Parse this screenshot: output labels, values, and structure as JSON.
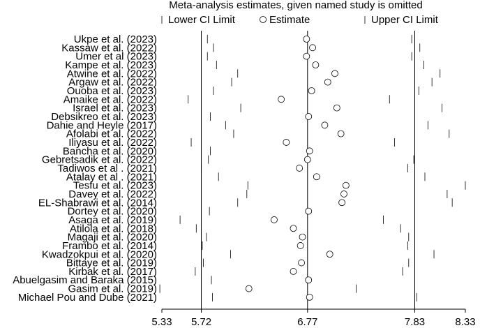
{
  "chart_data": {
    "type": "scatter",
    "title": "Meta-analysis estimates, given named study is omitted",
    "legend": {
      "position": "top",
      "entries": [
        {
          "marker": "tick",
          "label": "Lower CI Limit"
        },
        {
          "marker": "circle",
          "label": "Estimate"
        },
        {
          "marker": "tick",
          "label": "Upper CI Limit"
        }
      ]
    },
    "xlim": [
      5.33,
      8.33
    ],
    "x_ticks": [
      5.33,
      5.72,
      6.77,
      7.83,
      8.33
    ],
    "x_tick_labels": [
      "5.33",
      "5.72",
      "6.77",
      "7.83",
      "8.33"
    ],
    "reference_lines": [
      5.72,
      6.77,
      7.83
    ],
    "xlabel": "",
    "ylabel": "",
    "grid": false,
    "studies": [
      {
        "name": "Ukpe et al. (2023)",
        "lower": 5.78,
        "estimate": 6.76,
        "upper": 7.8
      },
      {
        "name": "Kassaw et al. (2022)",
        "lower": 5.84,
        "estimate": 6.82,
        "upper": 7.88
      },
      {
        "name": "Umer et al (2023)",
        "lower": 5.78,
        "estimate": 6.76,
        "upper": 7.8
      },
      {
        "name": "Kampe et al. (2023)",
        "lower": 5.87,
        "estimate": 6.85,
        "upper": 7.92
      },
      {
        "name": "Atwine et al. (2022)",
        "lower": 6.08,
        "estimate": 7.04,
        "upper": 8.08
      },
      {
        "name": "Argaw et al. (2022)",
        "lower": 6.02,
        "estimate": 6.97,
        "upper": 8.0
      },
      {
        "name": "Ouoba et al. (2023)",
        "lower": 5.84,
        "estimate": 6.81,
        "upper": 7.87
      },
      {
        "name": "Amaike et al. (2022)",
        "lower": 5.59,
        "estimate": 6.51,
        "upper": 7.58
      },
      {
        "name": "Israel et al. (2023)",
        "lower": 6.11,
        "estimate": 7.06,
        "upper": 8.1
      },
      {
        "name": "Debsikreo et al. (2023)",
        "lower": 5.81,
        "estimate": 6.78,
        "upper": 7.83
      },
      {
        "name": "Dahie and Heyle (2017)",
        "lower": 5.96,
        "estimate": 6.94,
        "upper": 7.96
      },
      {
        "name": "Afolabi et al. (2022)",
        "lower": 6.04,
        "estimate": 7.1,
        "upper": 8.17
      },
      {
        "name": "Iliyasu et al. (2022)",
        "lower": 5.62,
        "estimate": 6.56,
        "upper": 7.63
      },
      {
        "name": "Bancha et al. (2020)",
        "lower": 5.81,
        "estimate": 6.79,
        "upper": 7.83
      },
      {
        "name": "Gebretsadik et al. (2022)",
        "lower": 5.79,
        "estimate": 6.77,
        "upper": 7.82
      },
      {
        "name": "Tadiwos et al . (2021)",
        "lower": 5.72,
        "estimate": 6.69,
        "upper": 7.76
      },
      {
        "name": "Atalay et al . (2021)",
        "lower": 5.89,
        "estimate": 6.86,
        "upper": 7.93
      },
      {
        "name": "Tesfu  et al. (2023)",
        "lower": 6.18,
        "estimate": 7.15,
        "upper": 8.33
      },
      {
        "name": "Davey et al. (2022)",
        "lower": 6.17,
        "estimate": 7.13,
        "upper": 8.15
      },
      {
        "name": "EL-Shabrawi et al. (2014)",
        "lower": 6.08,
        "estimate": 7.11,
        "upper": 8.2
      },
      {
        "name": "Dortey et al. (2020)",
        "lower": 5.8,
        "estimate": 6.78,
        "upper": 7.83
      },
      {
        "name": "Asaga et al. (2019)",
        "lower": 5.51,
        "estimate": 6.44,
        "upper": 7.52
      },
      {
        "name": "Atilola et al. (2018)",
        "lower": 5.67,
        "estimate": 6.63,
        "upper": 7.69
      },
      {
        "name": "Magaji et al. (2020)",
        "lower": 5.77,
        "estimate": 6.72,
        "upper": 7.77
      },
      {
        "name": "Frambo et al. (2014)",
        "lower": 5.73,
        "estimate": 6.7,
        "upper": 7.76
      },
      {
        "name": "Kwadzokpui et al. (2020)",
        "lower": 6.01,
        "estimate": 6.99,
        "upper": 8.02
      },
      {
        "name": "Bittaye et al. (2019)",
        "lower": 5.74,
        "estimate": 6.71,
        "upper": 7.77
      },
      {
        "name": "Kirbak et al. (2017)",
        "lower": 5.66,
        "estimate": 6.63,
        "upper": 7.71
      },
      {
        "name": "Abuelgasim and Baraka (2015)",
        "lower": 5.82,
        "estimate": 6.78,
        "upper": 7.83
      },
      {
        "name": "Gasim et al. (2019)",
        "lower": 5.31,
        "estimate": 6.19,
        "upper": 7.25
      },
      {
        "name": "Michael Pou and Dube (2021)",
        "lower": 5.83,
        "estimate": 6.79,
        "upper": 7.85
      }
    ]
  }
}
